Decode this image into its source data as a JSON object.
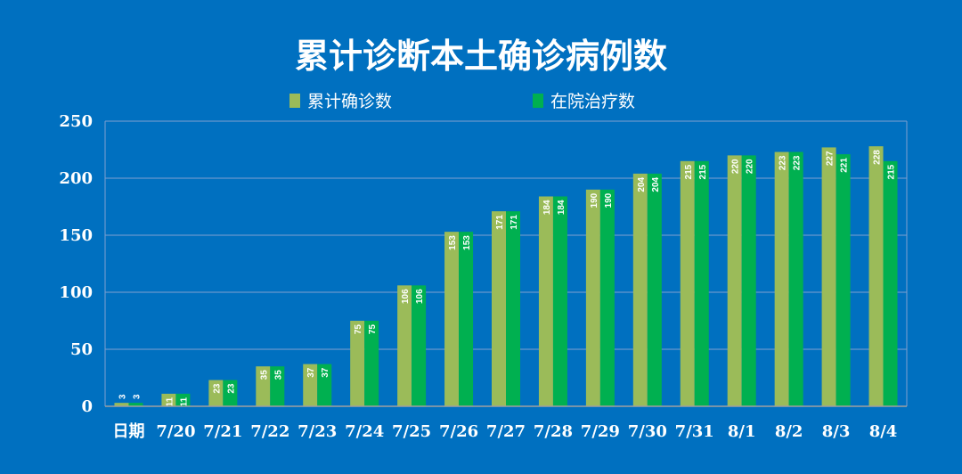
{
  "chart_data": {
    "type": "bar",
    "title": "累计诊断本土确诊病例数",
    "categories": [
      "日期",
      "7/20",
      "7/21",
      "7/22",
      "7/23",
      "7/24",
      "7/25",
      "7/26",
      "7/27",
      "7/28",
      "7/29",
      "7/30",
      "7/31",
      "8/1",
      "8/2",
      "8/3",
      "8/4"
    ],
    "series": [
      {
        "name": "累计确诊数",
        "color": "#9bbb59",
        "values": [
          3,
          11,
          23,
          35,
          37,
          75,
          106,
          153,
          171,
          184,
          190,
          204,
          215,
          220,
          223,
          227,
          228
        ]
      },
      {
        "name": "在院治疗数",
        "color": "#00b050",
        "values": [
          3,
          11,
          23,
          35,
          37,
          75,
          106,
          153,
          171,
          184,
          190,
          204,
          215,
          220,
          223,
          221,
          215
        ]
      }
    ],
    "ylim": [
      0,
      250
    ],
    "yticks": [
      0,
      50,
      100,
      150,
      200,
      250
    ],
    "grid": true,
    "legend": "top-center",
    "background": "#0070c0"
  }
}
